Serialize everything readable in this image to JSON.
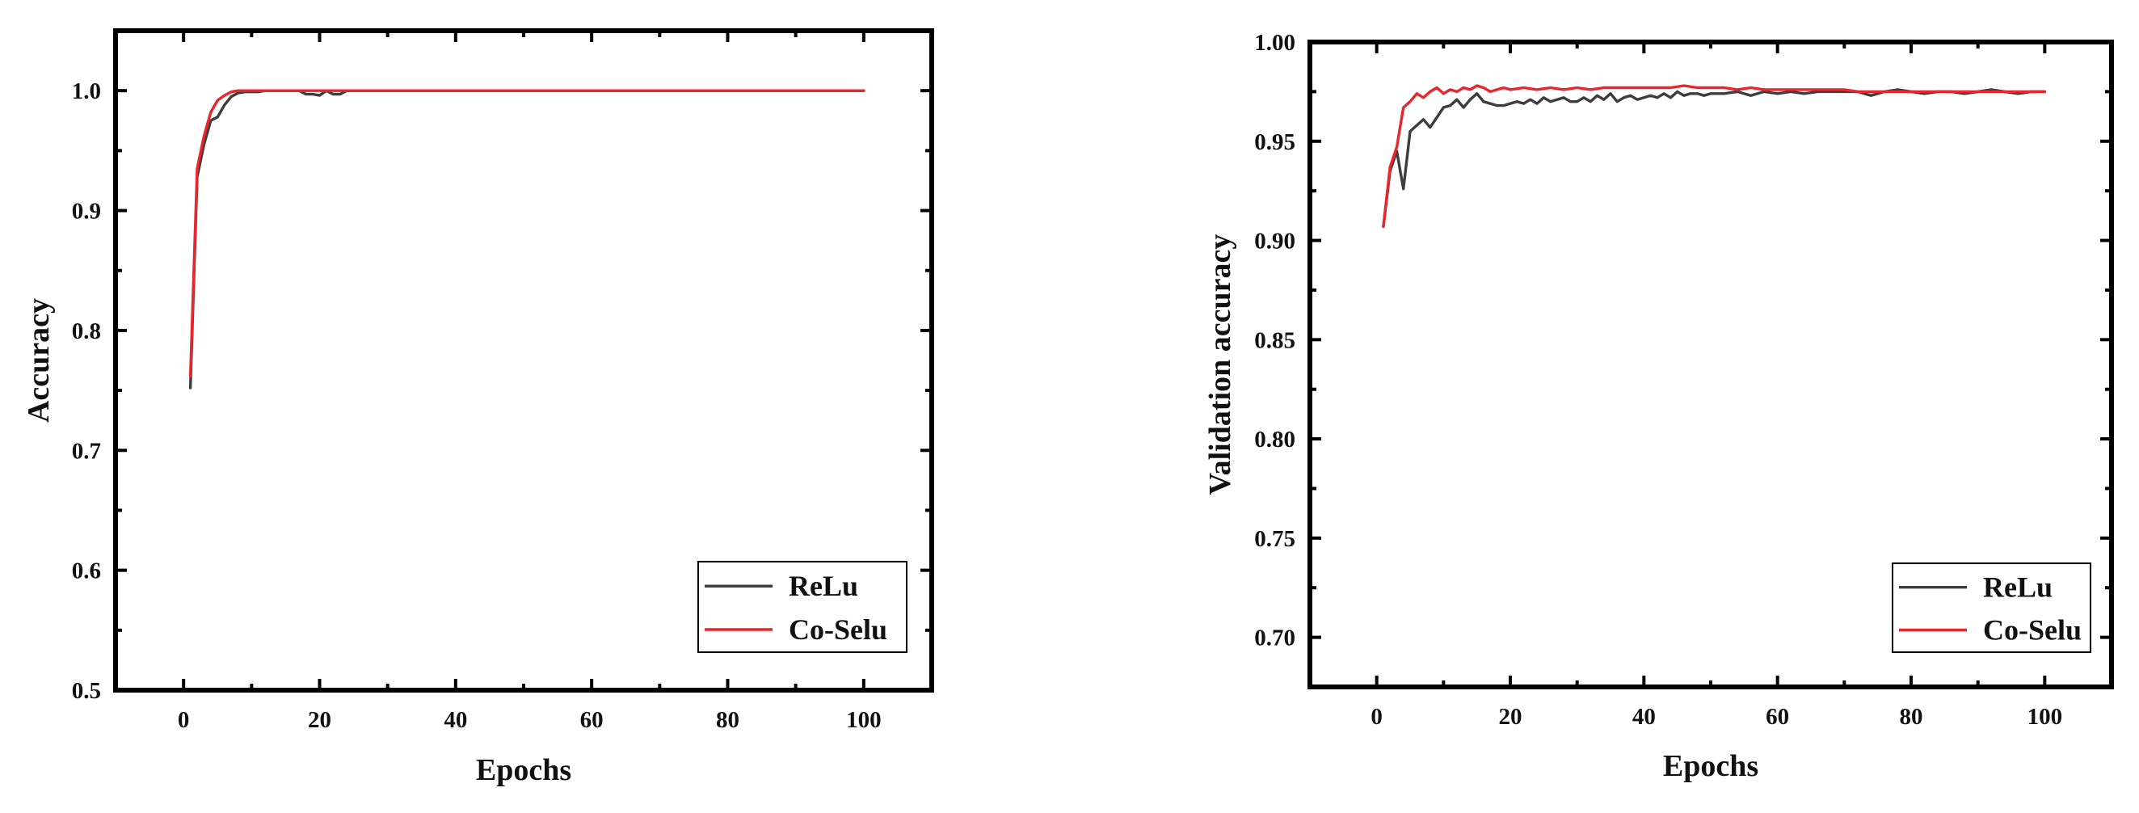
{
  "colors": {
    "relu": "#3d3d3d",
    "coselu": "#e8262c"
  },
  "chart_data": [
    {
      "type": "line",
      "title": "",
      "xlabel": "Epochs",
      "ylabel": "Accuracy",
      "xlim": [
        -10,
        110
      ],
      "ylim": [
        0.5,
        1.05
      ],
      "xticks": [
        0,
        20,
        40,
        60,
        80,
        100
      ],
      "xtick_labels": [
        "0",
        "20",
        "40",
        "60",
        "80",
        "100"
      ],
      "yticks": [
        0.5,
        0.6,
        0.7,
        0.8,
        0.9,
        1.0
      ],
      "ytick_labels": [
        "0.5",
        "0.6",
        "0.7",
        "0.8",
        "0.9",
        "1.0"
      ],
      "legend": {
        "position": "bottom-right",
        "entries": [
          "ReLu",
          "Co-Selu"
        ]
      },
      "series": [
        {
          "name": "ReLu",
          "x": [
            1,
            2,
            3,
            4,
            5,
            6,
            7,
            8,
            9,
            10,
            11,
            12,
            13,
            14,
            15,
            16,
            17,
            18,
            19,
            20,
            21,
            22,
            23,
            24,
            25,
            26,
            30,
            40,
            50,
            60,
            70,
            80,
            90,
            100
          ],
          "y": [
            0.752,
            0.928,
            0.955,
            0.975,
            0.978,
            0.988,
            0.995,
            0.998,
            0.999,
            0.999,
            0.999,
            1.0,
            1.0,
            1.0,
            1.0,
            1.0,
            1.0,
            0.997,
            0.997,
            0.996,
            1.0,
            0.997,
            0.997,
            1.0,
            1.0,
            1.0,
            1.0,
            1.0,
            1.0,
            1.0,
            1.0,
            1.0,
            1.0,
            1.0
          ]
        },
        {
          "name": "Co-Selu",
          "x": [
            1,
            2,
            3,
            4,
            5,
            6,
            7,
            8,
            9,
            10,
            12,
            15,
            20,
            30,
            40,
            50,
            60,
            70,
            80,
            90,
            100
          ],
          "y": [
            0.762,
            0.935,
            0.962,
            0.982,
            0.992,
            0.996,
            0.999,
            1.0,
            1.0,
            1.0,
            1.0,
            1.0,
            1.0,
            1.0,
            1.0,
            1.0,
            1.0,
            1.0,
            1.0,
            1.0,
            1.0
          ]
        }
      ]
    },
    {
      "type": "line",
      "title": "",
      "xlabel": "Epochs",
      "ylabel": "Validation accuracy",
      "xlim": [
        -10,
        110
      ],
      "ylim": [
        0.675,
        1.0
      ],
      "xticks": [
        0,
        20,
        40,
        60,
        80,
        100
      ],
      "xtick_labels": [
        "0",
        "20",
        "40",
        "60",
        "80",
        "100"
      ],
      "yticks": [
        0.7,
        0.75,
        0.8,
        0.85,
        0.9,
        0.95,
        1.0
      ],
      "ytick_labels": [
        "0.70",
        "0.75",
        "0.80",
        "0.85",
        "0.90",
        "0.95",
        "1.00"
      ],
      "legend": {
        "position": "bottom-right",
        "entries": [
          "ReLu",
          "Co-Selu"
        ]
      },
      "series": [
        {
          "name": "ReLu",
          "x": [
            1,
            2,
            3,
            4,
            5,
            6,
            7,
            8,
            9,
            10,
            11,
            12,
            13,
            14,
            15,
            16,
            17,
            18,
            19,
            20,
            21,
            22,
            23,
            24,
            25,
            26,
            27,
            28,
            29,
            30,
            31,
            32,
            33,
            34,
            35,
            36,
            37,
            38,
            39,
            40,
            41,
            42,
            43,
            44,
            45,
            46,
            47,
            48,
            49,
            50,
            52,
            54,
            56,
            58,
            60,
            62,
            64,
            66,
            68,
            70,
            72,
            74,
            76,
            78,
            80,
            82,
            84,
            86,
            88,
            90,
            92,
            94,
            96,
            98,
            100
          ],
          "y": [
            0.907,
            0.935,
            0.945,
            0.926,
            0.955,
            0.958,
            0.961,
            0.957,
            0.962,
            0.967,
            0.968,
            0.971,
            0.967,
            0.971,
            0.974,
            0.97,
            0.969,
            0.968,
            0.968,
            0.969,
            0.97,
            0.969,
            0.971,
            0.969,
            0.972,
            0.97,
            0.971,
            0.972,
            0.97,
            0.97,
            0.972,
            0.97,
            0.973,
            0.971,
            0.974,
            0.97,
            0.972,
            0.973,
            0.971,
            0.972,
            0.973,
            0.972,
            0.974,
            0.972,
            0.975,
            0.973,
            0.974,
            0.974,
            0.973,
            0.974,
            0.974,
            0.975,
            0.973,
            0.975,
            0.974,
            0.975,
            0.974,
            0.975,
            0.975,
            0.975,
            0.975,
            0.973,
            0.975,
            0.976,
            0.975,
            0.974,
            0.975,
            0.975,
            0.974,
            0.975,
            0.976,
            0.975,
            0.974,
            0.975,
            0.975
          ]
        },
        {
          "name": "Co-Selu",
          "x": [
            1,
            2,
            3,
            4,
            5,
            6,
            7,
            8,
            9,
            10,
            11,
            12,
            13,
            14,
            15,
            16,
            17,
            18,
            19,
            20,
            22,
            24,
            26,
            28,
            30,
            32,
            34,
            36,
            38,
            40,
            42,
            44,
            46,
            48,
            50,
            52,
            54,
            56,
            58,
            60,
            62,
            64,
            66,
            68,
            70,
            72,
            74,
            76,
            78,
            80,
            82,
            84,
            86,
            88,
            90,
            92,
            94,
            96,
            98,
            100
          ],
          "y": [
            0.907,
            0.937,
            0.947,
            0.967,
            0.97,
            0.974,
            0.972,
            0.975,
            0.977,
            0.974,
            0.976,
            0.975,
            0.977,
            0.976,
            0.978,
            0.977,
            0.975,
            0.976,
            0.977,
            0.976,
            0.977,
            0.976,
            0.977,
            0.976,
            0.977,
            0.976,
            0.977,
            0.977,
            0.977,
            0.977,
            0.977,
            0.977,
            0.978,
            0.977,
            0.977,
            0.977,
            0.976,
            0.977,
            0.976,
            0.976,
            0.976,
            0.976,
            0.976,
            0.976,
            0.976,
            0.975,
            0.975,
            0.975,
            0.975,
            0.975,
            0.975,
            0.975,
            0.975,
            0.975,
            0.975,
            0.975,
            0.975,
            0.975,
            0.975,
            0.975
          ]
        }
      ]
    }
  ]
}
